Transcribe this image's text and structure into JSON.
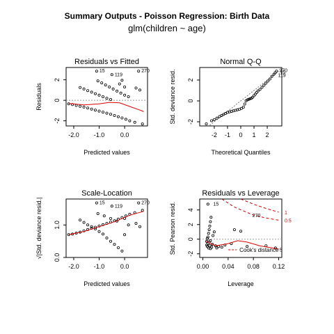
{
  "figure": {
    "title": "Summary Outputs - Poisson Regression: Birth Data",
    "subtitle": "glm(children ~ age)"
  },
  "chart_data": [
    {
      "type": "scatter",
      "title": "Residuals vs Fitted",
      "xlabel": "Predicted values",
      "ylabel": "Residuals",
      "xlim": [
        -2.3,
        0.9
      ],
      "ylim": [
        -2.5,
        3.2
      ],
      "xticks": [
        "-2.0",
        "-1.0",
        "0.0"
      ],
      "xtick_values": [
        -2.0,
        -1.0,
        0.0
      ],
      "yticks": [
        "-2",
        "0",
        "2"
      ],
      "ytick_values": [
        -2,
        0,
        2
      ],
      "reference_line": 0,
      "points": [
        [
          -2.2,
          -0.35
        ],
        [
          -2.05,
          -0.42
        ],
        [
          -1.9,
          -0.5
        ],
        [
          -1.75,
          -0.58
        ],
        [
          -1.6,
          -0.66
        ],
        [
          -1.45,
          -0.75
        ],
        [
          -1.3,
          -0.85
        ],
        [
          -1.15,
          -0.95
        ],
        [
          -1.0,
          -1.05
        ],
        [
          -0.85,
          -1.15
        ],
        [
          -0.7,
          -1.25
        ],
        [
          -0.55,
          -1.35
        ],
        [
          -0.4,
          -1.48
        ],
        [
          -0.25,
          -1.6
        ],
        [
          -0.1,
          -1.72
        ],
        [
          0.05,
          -1.85
        ],
        [
          0.2,
          -2.0
        ],
        [
          0.4,
          -2.15
        ],
        [
          0.7,
          -2.3
        ],
        [
          -1.75,
          1.25
        ],
        [
          -1.6,
          1.1
        ],
        [
          -1.45,
          0.95
        ],
        [
          -1.3,
          0.8
        ],
        [
          -1.15,
          0.65
        ],
        [
          -1.0,
          0.5
        ],
        [
          -0.85,
          0.35
        ],
        [
          -0.7,
          0.2
        ],
        [
          -0.55,
          0.08
        ],
        [
          -1.05,
          1.9
        ],
        [
          -0.9,
          1.7
        ],
        [
          -0.75,
          1.5
        ],
        [
          -0.6,
          1.3
        ],
        [
          -0.45,
          1.1
        ],
        [
          -0.3,
          0.9
        ],
        [
          -0.15,
          0.7
        ],
        [
          0.0,
          0.5
        ],
        [
          0.15,
          0.35
        ],
        [
          -0.2,
          1.6
        ],
        [
          0.0,
          1.3
        ],
        [
          -0.1,
          1.95
        ],
        [
          0.45,
          1.2
        ],
        [
          0.6,
          1.0
        ],
        [
          -1.1,
          2.85
        ],
        [
          -0.5,
          2.5
        ],
        [
          0.55,
          2.85
        ]
      ],
      "fit_curve": [
        [
          -2.2,
          -0.3
        ],
        [
          -1.6,
          -0.45
        ],
        [
          -1.0,
          -0.35
        ],
        [
          -0.6,
          -0.2
        ],
        [
          -0.2,
          -0.25
        ],
        [
          0.2,
          -0.6
        ],
        [
          0.6,
          -0.95
        ],
        [
          0.75,
          -1.1
        ]
      ],
      "labels": [
        {
          "text": "15",
          "x": -1.1,
          "y": 2.85
        },
        {
          "text": "119",
          "x": -0.5,
          "y": 2.5
        },
        {
          "text": "270",
          "x": 0.55,
          "y": 2.85
        }
      ]
    },
    {
      "type": "scatter",
      "title": "Normal Q-Q",
      "xlabel": "Theoretical Quantiles",
      "ylabel": "Std. deviance resid.",
      "xlim": [
        -3.1,
        3.1
      ],
      "ylim": [
        -2.4,
        3.2
      ],
      "xticks": [
        "-2",
        "-1",
        "0",
        "1",
        "2"
      ],
      "xtick_values": [
        -2,
        -1,
        0,
        1,
        2
      ],
      "yticks": [
        "-2",
        "0",
        "2"
      ],
      "ytick_values": [
        -2,
        0,
        2
      ],
      "reference_line": [
        [
          -3.0,
          -3.0
        ],
        [
          3.0,
          3.0
        ]
      ],
      "points": [
        [
          -2.6,
          -2.2
        ],
        [
          -2.2,
          -1.9
        ],
        [
          -2.0,
          -1.8
        ],
        [
          -1.8,
          -1.65
        ],
        [
          -1.6,
          -1.5
        ],
        [
          -1.45,
          -1.4
        ],
        [
          -1.3,
          -1.3
        ],
        [
          -1.15,
          -1.2
        ],
        [
          -1.0,
          -1.1
        ],
        [
          -0.85,
          -1.05
        ],
        [
          -0.7,
          -1.0
        ],
        [
          -0.55,
          -0.95
        ],
        [
          -0.4,
          -0.9
        ],
        [
          -0.25,
          -0.85
        ],
        [
          -0.1,
          -0.8
        ],
        [
          0.05,
          -0.72
        ],
        [
          0.2,
          -0.6
        ],
        [
          0.3,
          -0.3
        ],
        [
          0.4,
          0.0
        ],
        [
          0.5,
          0.1
        ],
        [
          0.6,
          0.15
        ],
        [
          0.7,
          0.2
        ],
        [
          0.8,
          0.25
        ],
        [
          0.9,
          0.35
        ],
        [
          1.0,
          0.5
        ],
        [
          1.1,
          0.65
        ],
        [
          1.2,
          0.8
        ],
        [
          1.3,
          0.95
        ],
        [
          1.45,
          1.1
        ],
        [
          1.6,
          1.3
        ],
        [
          1.75,
          1.5
        ],
        [
          1.9,
          1.7
        ],
        [
          2.05,
          1.9
        ],
        [
          2.2,
          2.1
        ],
        [
          2.35,
          2.35
        ],
        [
          2.5,
          2.55
        ],
        [
          2.6,
          2.7
        ],
        [
          2.7,
          2.85
        ]
      ],
      "labels": [
        {
          "text": "270",
          "x": 2.7,
          "y": 2.9
        },
        {
          "text": "15",
          "x": 2.75,
          "y": 2.7
        },
        {
          "text": "119",
          "x": 2.6,
          "y": 2.45
        }
      ]
    },
    {
      "type": "scatter",
      "title": "Scale-Location",
      "xlabel": "Predicted values",
      "ylabel": "√|Std. deviance resid.|",
      "xlim": [
        -2.3,
        0.9
      ],
      "ylim": [
        0.0,
        1.8
      ],
      "xticks": [
        "-2.0",
        "-1.0",
        "0.0"
      ],
      "xtick_values": [
        -2.0,
        -1.0,
        0.0
      ],
      "yticks": [
        "0.0",
        "1.0"
      ],
      "ytick_values": [
        0.0,
        1.0
      ],
      "points": [
        [
          -2.2,
          0.7
        ],
        [
          -2.05,
          0.72
        ],
        [
          -1.9,
          0.75
        ],
        [
          -1.75,
          0.78
        ],
        [
          -1.6,
          0.82
        ],
        [
          -1.45,
          0.86
        ],
        [
          -1.3,
          0.9
        ],
        [
          -1.15,
          0.93
        ],
        [
          -1.0,
          0.97
        ],
        [
          -0.85,
          1.01
        ],
        [
          -0.7,
          1.05
        ],
        [
          -0.55,
          1.09
        ],
        [
          -0.4,
          1.13
        ],
        [
          -0.25,
          1.18
        ],
        [
          -0.1,
          1.23
        ],
        [
          0.05,
          1.28
        ],
        [
          0.2,
          1.33
        ],
        [
          0.4,
          1.38
        ],
        [
          0.7,
          1.45
        ],
        [
          -1.75,
          1.15
        ],
        [
          -1.6,
          1.08
        ],
        [
          -1.45,
          1.0
        ],
        [
          -1.3,
          0.95
        ],
        [
          -1.15,
          0.88
        ],
        [
          -1.0,
          0.8
        ],
        [
          -0.85,
          0.72
        ],
        [
          -0.7,
          0.6
        ],
        [
          -0.55,
          0.5
        ],
        [
          -0.4,
          0.4
        ],
        [
          -0.25,
          0.3
        ],
        [
          -0.1,
          0.2
        ],
        [
          -1.05,
          1.35
        ],
        [
          -0.8,
          1.28
        ],
        [
          -0.55,
          1.2
        ],
        [
          -0.3,
          1.12
        ],
        [
          0.0,
          0.7
        ],
        [
          0.15,
          1.0
        ],
        [
          0.45,
          1.05
        ],
        [
          0.6,
          0.95
        ],
        [
          -1.1,
          1.68
        ],
        [
          -0.5,
          1.58
        ],
        [
          0.55,
          1.68
        ],
        [
          0.0,
          1.2
        ]
      ],
      "fit_curve": [
        [
          -2.2,
          0.7
        ],
        [
          -1.6,
          0.8
        ],
        [
          -1.0,
          0.95
        ],
        [
          -0.4,
          1.1
        ],
        [
          0.2,
          1.3
        ],
        [
          0.75,
          1.42
        ]
      ],
      "labels": [
        {
          "text": "15",
          "x": -1.1,
          "y": 1.68
        },
        {
          "text": "119",
          "x": -0.5,
          "y": 1.58
        },
        {
          "text": "270",
          "x": 0.55,
          "y": 1.68
        }
      ]
    },
    {
      "type": "scatter",
      "title": "Residuals vs Leverage",
      "xlabel": "Leverage",
      "ylabel": "Std. Pearson resid.",
      "xlim": [
        -0.005,
        0.125
      ],
      "ylim": [
        -2.5,
        5.5
      ],
      "xticks": [
        "0.00",
        "0.04",
        "0.08",
        "0.12"
      ],
      "xtick_values": [
        0.0,
        0.04,
        0.08,
        0.12
      ],
      "yticks": [
        "-2",
        "0",
        "2",
        "4"
      ],
      "ytick_values": [
        -2,
        0,
        2,
        4
      ],
      "reference_line": 0,
      "points": [
        [
          0.006,
          -0.8
        ],
        [
          0.007,
          -1.0
        ],
        [
          0.008,
          -0.6
        ],
        [
          0.009,
          -1.2
        ],
        [
          0.01,
          -0.4
        ],
        [
          0.011,
          -0.9
        ],
        [
          0.012,
          -0.2
        ],
        [
          0.008,
          0.3
        ],
        [
          0.009,
          0.8
        ],
        [
          0.01,
          1.3
        ],
        [
          0.011,
          1.8
        ],
        [
          0.012,
          2.4
        ],
        [
          0.013,
          3.0
        ],
        [
          0.014,
          -1.1
        ],
        [
          0.015,
          -0.7
        ],
        [
          0.016,
          0.5
        ],
        [
          0.018,
          1.0
        ],
        [
          0.02,
          -0.9
        ],
        [
          0.022,
          -1.2
        ],
        [
          0.025,
          -1.0
        ],
        [
          0.03,
          -1.1
        ],
        [
          0.035,
          -0.8
        ],
        [
          0.045,
          -0.6
        ],
        [
          0.05,
          1.3
        ],
        [
          0.06,
          1.1
        ],
        [
          0.008,
          4.8
        ],
        [
          0.006,
          -0.3
        ],
        [
          0.007,
          0.1
        ],
        [
          0.012,
          -1.3
        ],
        [
          0.07,
          -1.0
        ],
        [
          0.1,
          -0.9
        ],
        [
          0.115,
          -1.2
        ]
      ],
      "fit_curve": [
        [
          0.005,
          -0.3
        ],
        [
          0.02,
          -0.9
        ],
        [
          0.04,
          -0.6
        ],
        [
          0.055,
          -0.2
        ],
        [
          0.07,
          -0.4
        ],
        [
          0.09,
          -0.9
        ],
        [
          0.11,
          -1.2
        ],
        [
          0.12,
          -1.35
        ]
      ],
      "cooks_contours": [
        {
          "label": "1",
          "points": [
            [
              0.06,
              5.5
            ],
            [
              0.08,
              4.8
            ],
            [
              0.1,
              4.2
            ],
            [
              0.12,
              3.7
            ]
          ]
        },
        {
          "label": "0.5",
          "points": [
            [
              0.03,
              5.5
            ],
            [
              0.05,
              4.4
            ],
            [
              0.08,
              3.3
            ],
            [
              0.1,
              2.9
            ],
            [
              0.12,
              2.6
            ]
          ]
        }
      ],
      "cooks_legend": "Cook's distance",
      "labels": [
        {
          "text": "15",
          "x": 0.012,
          "y": 4.8
        },
        {
          "text": "270",
          "x": 0.074,
          "y": 3.2
        },
        {
          "text": "5",
          "x": 0.117,
          "y": -1.5
        }
      ]
    }
  ]
}
